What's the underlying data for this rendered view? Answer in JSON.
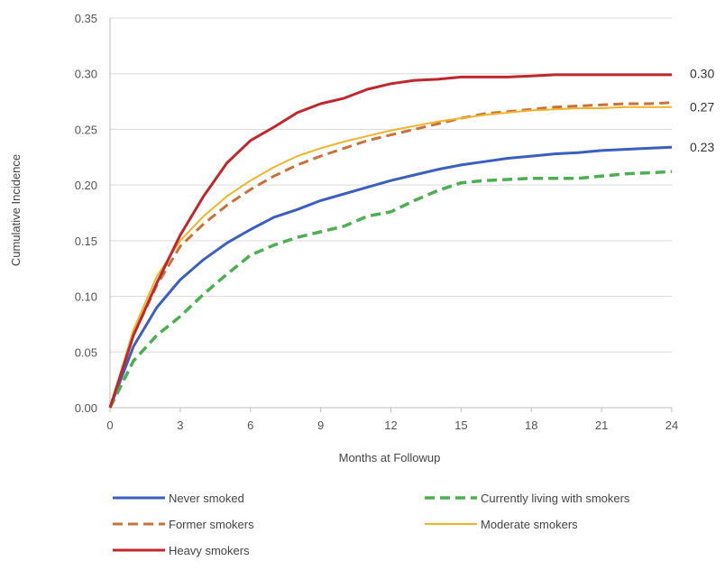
{
  "chart_data": {
    "type": "line",
    "xlabel": "Months at Followup",
    "ylabel": "Cumulative Incidence",
    "xlim": [
      0,
      24
    ],
    "ylim": [
      0,
      0.35
    ],
    "xticks": [
      "0",
      "3",
      "6",
      "9",
      "12",
      "15",
      "18",
      "21",
      "24"
    ],
    "yticks": [
      "0.00",
      "0.05",
      "0.10",
      "0.15",
      "0.20",
      "0.25",
      "0.30",
      "0.35"
    ],
    "grid": "horizontal",
    "legend_position": "bottom",
    "end_labels": [
      {
        "text": "0.30",
        "y": 0.3
      },
      {
        "text": "0.27",
        "y": 0.27
      },
      {
        "text": "0.23",
        "y": 0.234
      }
    ],
    "series": [
      {
        "name": "Never smoked",
        "color": "#3a5fbf",
        "dash": "solid",
        "width": 3,
        "x": [
          0,
          1,
          2,
          3,
          4,
          5,
          6,
          7,
          8,
          9,
          10,
          11,
          12,
          13,
          14,
          15,
          16,
          17,
          18,
          19,
          20,
          21,
          22,
          23,
          24
        ],
        "y": [
          0,
          0.055,
          0.09,
          0.115,
          0.133,
          0.148,
          0.16,
          0.171,
          0.178,
          0.186,
          0.192,
          0.198,
          0.204,
          0.209,
          0.214,
          0.218,
          0.221,
          0.224,
          0.226,
          0.228,
          0.229,
          0.231,
          0.232,
          0.233,
          0.234
        ]
      },
      {
        "name": "Currently living with smokers",
        "color": "#4caf50",
        "dash": "dashed",
        "width": 3.5,
        "x": [
          0,
          1,
          2,
          3,
          4,
          5,
          6,
          7,
          8,
          9,
          10,
          11,
          12,
          13,
          14,
          15,
          16,
          17,
          18,
          19,
          20,
          21,
          22,
          23,
          24
        ],
        "y": [
          0,
          0.042,
          0.065,
          0.082,
          0.102,
          0.12,
          0.137,
          0.146,
          0.153,
          0.158,
          0.163,
          0.172,
          0.176,
          0.186,
          0.195,
          0.202,
          0.204,
          0.205,
          0.206,
          0.206,
          0.206,
          0.208,
          0.21,
          0.211,
          0.212
        ]
      },
      {
        "name": "Former smokers",
        "color": "#c9713a",
        "dash": "dashed",
        "width": 3,
        "x": [
          0,
          1,
          2,
          3,
          4,
          5,
          6,
          7,
          8,
          9,
          10,
          11,
          12,
          13,
          14,
          15,
          16,
          17,
          18,
          19,
          20,
          21,
          22,
          23,
          24
        ],
        "y": [
          0,
          0.065,
          0.11,
          0.145,
          0.165,
          0.182,
          0.196,
          0.208,
          0.218,
          0.226,
          0.233,
          0.24,
          0.245,
          0.25,
          0.255,
          0.26,
          0.264,
          0.266,
          0.268,
          0.27,
          0.271,
          0.272,
          0.273,
          0.273,
          0.274
        ]
      },
      {
        "name": "Moderate smokers",
        "color": "#f0b429",
        "dash": "solid",
        "width": 2,
        "x": [
          0,
          1,
          2,
          3,
          4,
          5,
          6,
          7,
          8,
          9,
          10,
          11,
          12,
          13,
          14,
          15,
          16,
          17,
          18,
          19,
          20,
          21,
          22,
          23,
          24
        ],
        "y": [
          0,
          0.07,
          0.118,
          0.15,
          0.172,
          0.19,
          0.204,
          0.216,
          0.226,
          0.233,
          0.239,
          0.244,
          0.249,
          0.253,
          0.257,
          0.26,
          0.263,
          0.265,
          0.267,
          0.268,
          0.269,
          0.269,
          0.27,
          0.27,
          0.27
        ]
      },
      {
        "name": "Heavy smokers",
        "color": "#c0272d",
        "dash": "solid",
        "width": 3,
        "x": [
          0,
          1,
          2,
          3,
          4,
          5,
          6,
          7,
          8,
          9,
          10,
          11,
          12,
          13,
          14,
          15,
          16,
          17,
          18,
          19,
          20,
          21,
          22,
          23,
          24
        ],
        "y": [
          0,
          0.065,
          0.112,
          0.155,
          0.19,
          0.22,
          0.24,
          0.252,
          0.265,
          0.273,
          0.278,
          0.286,
          0.291,
          0.294,
          0.295,
          0.297,
          0.297,
          0.297,
          0.298,
          0.299,
          0.299,
          0.299,
          0.299,
          0.299,
          0.299
        ]
      }
    ],
    "legend": [
      {
        "series": 0,
        "col": 0,
        "row": 0
      },
      {
        "series": 1,
        "col": 1,
        "row": 0
      },
      {
        "series": 2,
        "col": 0,
        "row": 1
      },
      {
        "series": 3,
        "col": 1,
        "row": 1
      },
      {
        "series": 4,
        "col": 0,
        "row": 2
      }
    ]
  }
}
